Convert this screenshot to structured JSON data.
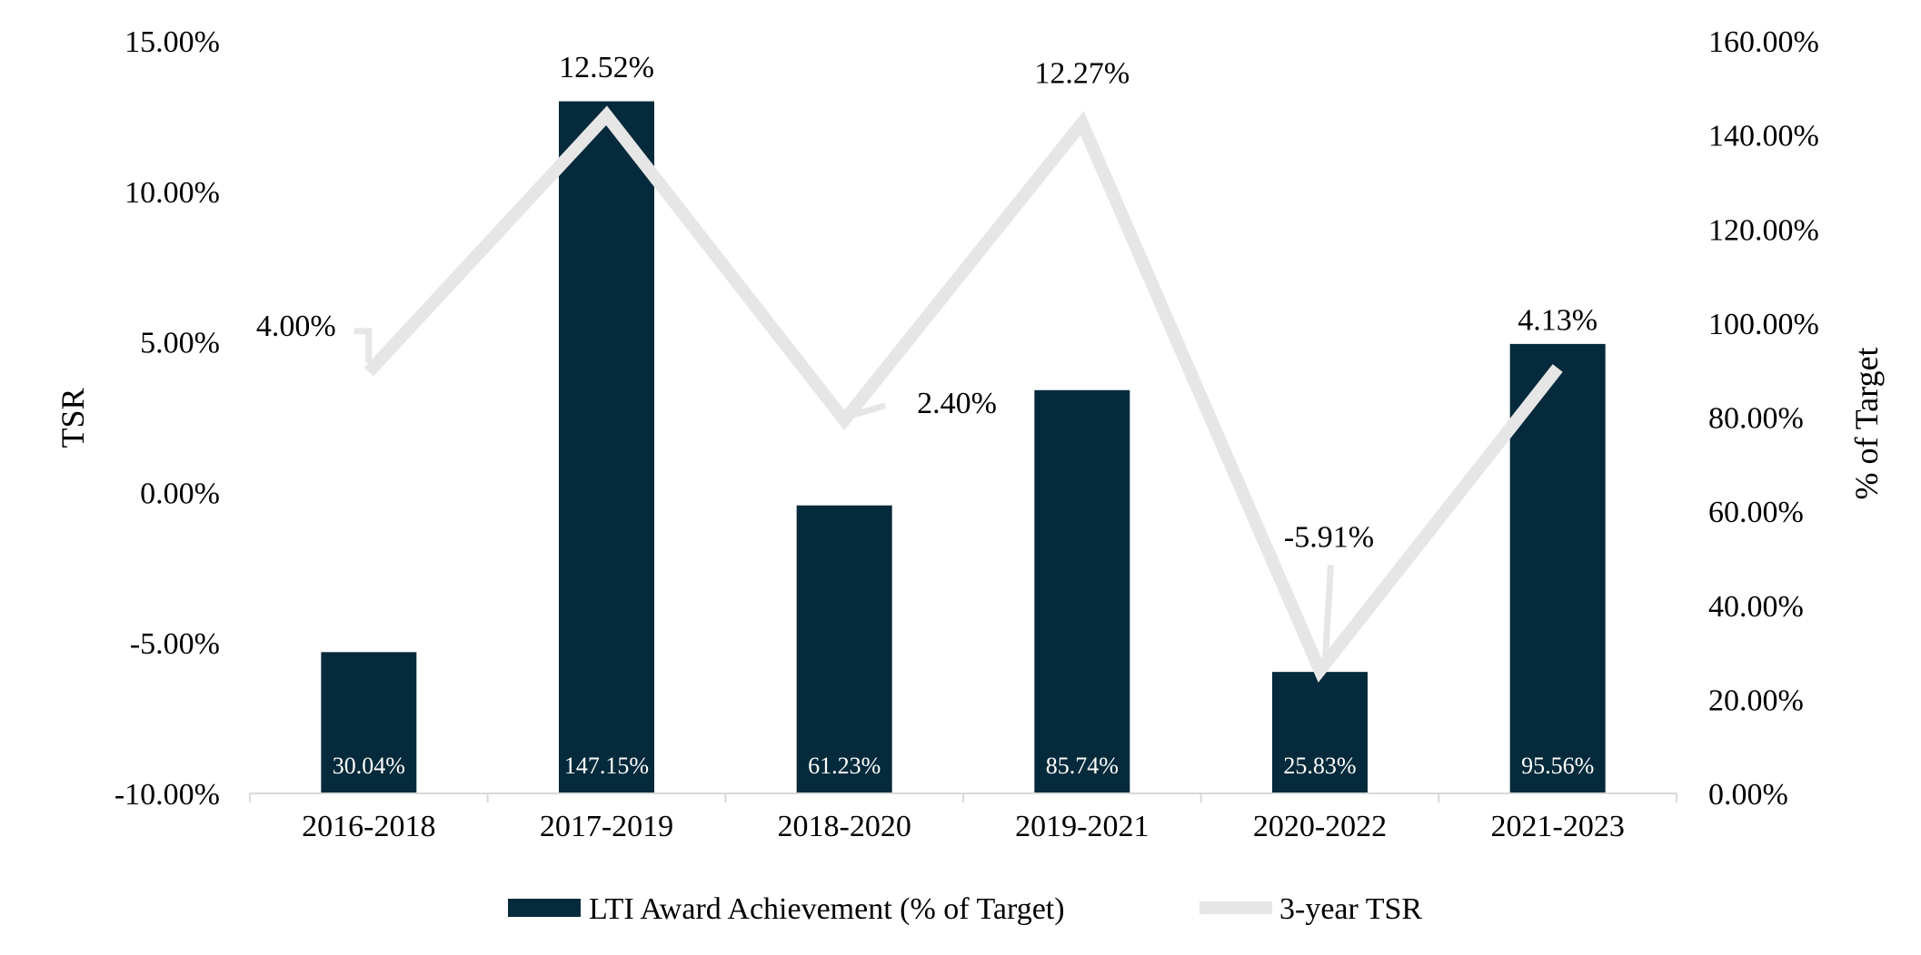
{
  "chart_data": {
    "type": "bar",
    "combo": "bar+line",
    "categories": [
      "2016-2018",
      "2017-2019",
      "2018-2020",
      "2019-2021",
      "2020-2022",
      "2021-2023"
    ],
    "series": [
      {
        "name": "LTI Award Achievement (% of Target)",
        "type": "bar",
        "axis": "right",
        "color": "#052a3b",
        "values": [
          30.04,
          147.15,
          61.23,
          85.74,
          25.83,
          95.56
        ],
        "labels": [
          "30.04%",
          "147.15%",
          "61.23%",
          "85.74%",
          "25.83%",
          "95.56%"
        ]
      },
      {
        "name": "3-year TSR",
        "type": "line",
        "axis": "left",
        "color": "#e6e6e6",
        "values": [
          4.0,
          12.52,
          2.4,
          12.27,
          -5.91,
          4.13
        ],
        "labels": [
          "4.00%",
          "12.52%",
          "2.40%",
          "12.27%",
          "-5.91%",
          "4.13%"
        ]
      }
    ],
    "left_axis": {
      "title": "TSR",
      "range": [
        -10,
        15
      ],
      "ticks": [
        15,
        10,
        5,
        0,
        -5,
        -10
      ],
      "tick_labels": [
        "15.00%",
        "10.00%",
        "5.00%",
        "0.00%",
        "-5.00%",
        "-10.00%"
      ]
    },
    "right_axis": {
      "title": "% of Target",
      "range": [
        0,
        160
      ],
      "ticks": [
        160,
        140,
        120,
        100,
        80,
        60,
        40,
        20,
        0
      ],
      "tick_labels": [
        "160.00%",
        "140.00%",
        "120.00%",
        "100.00%",
        "80.00%",
        "60.00%",
        "40.00%",
        "20.00%",
        "0.00%"
      ]
    },
    "grid": false,
    "legend_position": "bottom"
  }
}
